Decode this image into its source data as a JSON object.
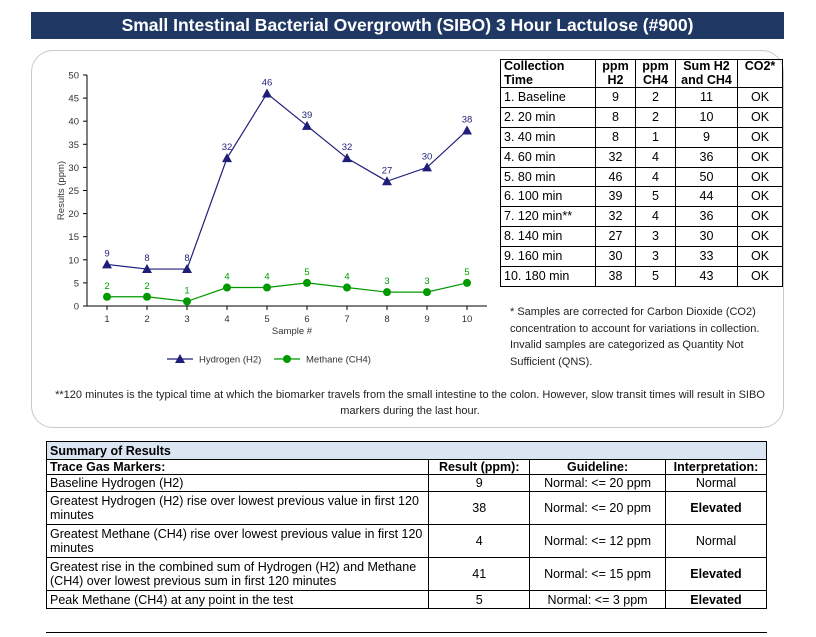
{
  "title": "Small Intestinal Bacterial Overgrowth (SIBO) 3 Hour Lactulose (#900)",
  "chart_data": {
    "type": "line",
    "x": [
      1,
      2,
      3,
      4,
      5,
      6,
      7,
      8,
      9,
      10
    ],
    "xlabel": "Sample #",
    "ylabel": "Results (ppm)",
    "ylim": [
      0,
      50
    ],
    "yticks": [
      0,
      5,
      10,
      15,
      20,
      25,
      30,
      35,
      40,
      45,
      50
    ],
    "grid": false,
    "legend_position": "bottom",
    "series": [
      {
        "name": "Hydrogen (H2)",
        "values": [
          9,
          8,
          8,
          32,
          46,
          39,
          32,
          27,
          30,
          38
        ],
        "color": "#1f1f7a",
        "marker": "triangle",
        "label_color": "#1f1f7a"
      },
      {
        "name": "Methane (CH4)",
        "values": [
          2,
          2,
          1,
          4,
          4,
          5,
          4,
          3,
          3,
          5
        ],
        "color": "#009900",
        "marker": "circle",
        "label_color": "#00a000"
      }
    ]
  },
  "collection_table": {
    "headers": [
      "Collection Time",
      "ppm H2",
      "ppm CH4",
      "Sum H2 and CH4",
      "CO2*"
    ],
    "rows": [
      [
        "1. Baseline",
        "9",
        "2",
        "11",
        "OK"
      ],
      [
        "2. 20 min",
        "8",
        "2",
        "10",
        "OK"
      ],
      [
        "3. 40 min",
        "8",
        "1",
        "9",
        "OK"
      ],
      [
        "4. 60 min",
        "32",
        "4",
        "36",
        "OK"
      ],
      [
        "5. 80 min",
        "46",
        "4",
        "50",
        "OK"
      ],
      [
        "6. 100 min",
        "39",
        "5",
        "44",
        "OK"
      ],
      [
        "7. 120 min**",
        "32",
        "4",
        "36",
        "OK"
      ],
      [
        "8. 140 min",
        "27",
        "3",
        "30",
        "OK"
      ],
      [
        "9. 160 min",
        "30",
        "3",
        "33",
        "OK"
      ],
      [
        "10. 180 min",
        "38",
        "5",
        "43",
        "OK"
      ]
    ]
  },
  "footnote_co2": "* Samples are corrected for Carbon Dioxide (CO2) concentration to account for variations in collection. Invalid samples are categorized as Quantity Not Sufficient (QNS).",
  "footnote_120": "**120 minutes is the typical time at which the biomarker travels from the small intestine to the colon. However, slow transit times will result in SIBO markers during the last hour.",
  "summary": {
    "title": "Summary of Results",
    "headers": [
      "Trace Gas Markers:",
      "Result (ppm):",
      "Guideline:",
      "Interpretation:"
    ],
    "rows": [
      [
        "Baseline Hydrogen (H2)",
        "9",
        "Normal: <= 20 ppm",
        "Normal"
      ],
      [
        "Greatest Hydrogen (H2) rise over lowest previous value in first 120 minutes",
        "38",
        "Normal: <= 20 ppm",
        "Elevated"
      ],
      [
        "Greatest Methane (CH4) rise over lowest previous value in first 120 minutes",
        "4",
        "Normal: <= 12 ppm",
        "Normal"
      ],
      [
        "Greatest rise in the combined sum of Hydrogen (H2) and Methane (CH4) over lowest previous sum in first 120 minutes",
        "41",
        "Normal: <= 15 ppm",
        "Elevated"
      ],
      [
        "Peak Methane (CH4) at any point in the test",
        "5",
        "Normal: <= 3 ppm",
        "Elevated"
      ]
    ]
  }
}
